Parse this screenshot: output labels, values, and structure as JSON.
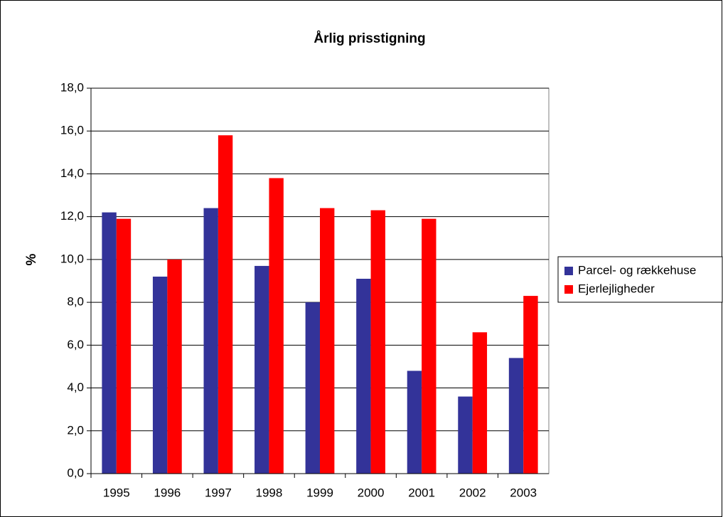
{
  "chart_data": {
    "type": "bar",
    "title": "Årlig prisstigning",
    "y_label": "%",
    "categories": [
      "1995",
      "1996",
      "1997",
      "1998",
      "1999",
      "2000",
      "2001",
      "2002",
      "2003"
    ],
    "series": [
      {
        "name": "Parcel- og rækkehuse",
        "color": "#333399",
        "values": [
          12.2,
          9.2,
          12.4,
          9.7,
          8.0,
          9.1,
          4.8,
          3.6,
          5.4
        ]
      },
      {
        "name": "Ejerlejligheder",
        "color": "#ff0000",
        "values": [
          11.9,
          10.0,
          15.8,
          13.8,
          12.4,
          12.3,
          11.9,
          6.6,
          8.3
        ]
      }
    ],
    "ylim": [
      0,
      18
    ],
    "yticks": [
      {
        "value": 0,
        "label": "0,0"
      },
      {
        "value": 2,
        "label": "2,0"
      },
      {
        "value": 4,
        "label": "4,0"
      },
      {
        "value": 6,
        "label": "6,0"
      },
      {
        "value": 8,
        "label": "8,0"
      },
      {
        "value": 10,
        "label": "10,0"
      },
      {
        "value": 12,
        "label": "12,0"
      },
      {
        "value": 14,
        "label": "14,0"
      },
      {
        "value": 16,
        "label": "16,0"
      },
      {
        "value": 18,
        "label": "18,0"
      }
    ],
    "grid": true,
    "legend": "right"
  }
}
